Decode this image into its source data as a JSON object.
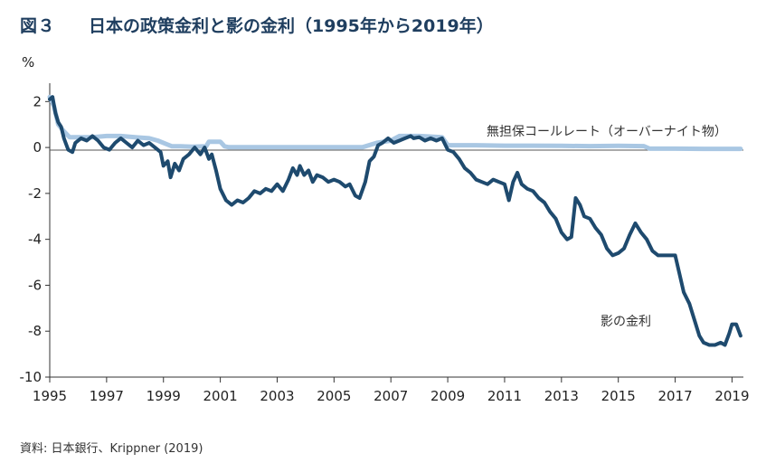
{
  "figure": {
    "label": "図３",
    "title": "日本の政策金利と影の金利（1995年から2019年）",
    "unit": "%",
    "source": "資料: 日本銀行、Krippner (2019)"
  },
  "colors": {
    "title": "#1f3e5f",
    "shadow_rate": "#1e4a6e",
    "call_rate": "#a9c7e3",
    "axis": "#333333"
  },
  "chart_data": {
    "type": "line",
    "title": "日本の政策金利と影の金利（1995年から2019年）",
    "xlabel": "",
    "ylabel": "%",
    "xlim": [
      1995,
      2019.4
    ],
    "ylim": [
      -10,
      2.8
    ],
    "grid": false,
    "y_ticks": [
      2,
      0,
      -2,
      -4,
      -6,
      -8,
      -10
    ],
    "y_tick_labels": [
      "2",
      "0",
      "-2",
      "-4",
      "-6",
      "-8",
      "-10"
    ],
    "x_ticks": [
      1995,
      1997,
      1999,
      2001,
      2003,
      2005,
      2007,
      2009,
      2011,
      2013,
      2015,
      2017,
      2019
    ],
    "x_tick_labels": [
      "1995",
      "1997",
      "1999",
      "2001",
      "2003",
      "2005",
      "2007",
      "2009",
      "2011",
      "2013",
      "2015",
      "2017",
      "2019"
    ],
    "series": [
      {
        "name": "無担保コールレート（オーバーナイト物）",
        "color": "#a9c7e3",
        "points": [
          [
            1995.0,
            2.2
          ],
          [
            1995.15,
            1.8
          ],
          [
            1995.3,
            1.0
          ],
          [
            1995.5,
            0.7
          ],
          [
            1995.7,
            0.45
          ],
          [
            1996.0,
            0.45
          ],
          [
            1996.5,
            0.45
          ],
          [
            1997.0,
            0.5
          ],
          [
            1997.5,
            0.5
          ],
          [
            1998.0,
            0.45
          ],
          [
            1998.5,
            0.4
          ],
          [
            1998.8,
            0.3
          ],
          [
            1999.1,
            0.15
          ],
          [
            1999.3,
            0.05
          ],
          [
            1999.6,
            0.05
          ],
          [
            2000.0,
            0.03
          ],
          [
            2000.5,
            0.05
          ],
          [
            2000.6,
            0.25
          ],
          [
            2001.0,
            0.25
          ],
          [
            2001.15,
            0.05
          ],
          [
            2001.3,
            0.01
          ],
          [
            2003.0,
            0.01
          ],
          [
            2005.0,
            0.01
          ],
          [
            2006.0,
            0.01
          ],
          [
            2006.5,
            0.2
          ],
          [
            2007.0,
            0.3
          ],
          [
            2007.3,
            0.5
          ],
          [
            2008.0,
            0.5
          ],
          [
            2008.8,
            0.45
          ],
          [
            2009.0,
            0.1
          ],
          [
            2010.0,
            0.1
          ],
          [
            2011.0,
            0.08
          ],
          [
            2012.0,
            0.08
          ],
          [
            2013.0,
            0.07
          ],
          [
            2014.0,
            0.06
          ],
          [
            2015.0,
            0.07
          ],
          [
            2015.9,
            0.06
          ],
          [
            2016.1,
            -0.05
          ],
          [
            2016.5,
            -0.05
          ],
          [
            2017.0,
            -0.05
          ],
          [
            2018.0,
            -0.06
          ],
          [
            2019.0,
            -0.06
          ],
          [
            2019.3,
            -0.06
          ]
        ]
      },
      {
        "name": "影の金利",
        "color": "#1e4a6e",
        "points": [
          [
            1995.0,
            2.1
          ],
          [
            1995.1,
            2.2
          ],
          [
            1995.2,
            1.5
          ],
          [
            1995.3,
            1.1
          ],
          [
            1995.4,
            0.9
          ],
          [
            1995.5,
            0.4
          ],
          [
            1995.65,
            -0.1
          ],
          [
            1995.8,
            -0.2
          ],
          [
            1995.9,
            0.2
          ],
          [
            1996.1,
            0.4
          ],
          [
            1996.3,
            0.3
          ],
          [
            1996.5,
            0.5
          ],
          [
            1996.7,
            0.3
          ],
          [
            1996.9,
            0.0
          ],
          [
            1997.1,
            -0.1
          ],
          [
            1997.3,
            0.2
          ],
          [
            1997.5,
            0.4
          ],
          [
            1997.7,
            0.2
          ],
          [
            1997.9,
            0.0
          ],
          [
            1998.1,
            0.3
          ],
          [
            1998.3,
            0.1
          ],
          [
            1998.5,
            0.2
          ],
          [
            1998.7,
            0.0
          ],
          [
            1998.9,
            -0.2
          ],
          [
            1999.0,
            -0.8
          ],
          [
            1999.15,
            -0.6
          ],
          [
            1999.25,
            -1.3
          ],
          [
            1999.4,
            -0.7
          ],
          [
            1999.55,
            -1.0
          ],
          [
            1999.7,
            -0.5
          ],
          [
            1999.9,
            -0.3
          ],
          [
            2000.1,
            0.0
          ],
          [
            2000.3,
            -0.3
          ],
          [
            2000.45,
            0.0
          ],
          [
            2000.6,
            -0.5
          ],
          [
            2000.7,
            -0.3
          ],
          [
            2000.85,
            -1.0
          ],
          [
            2001.0,
            -1.8
          ],
          [
            2001.2,
            -2.3
          ],
          [
            2001.4,
            -2.5
          ],
          [
            2001.6,
            -2.3
          ],
          [
            2001.8,
            -2.4
          ],
          [
            2002.0,
            -2.2
          ],
          [
            2002.2,
            -1.9
          ],
          [
            2002.4,
            -2.0
          ],
          [
            2002.6,
            -1.8
          ],
          [
            2002.8,
            -1.9
          ],
          [
            2003.0,
            -1.6
          ],
          [
            2003.2,
            -1.9
          ],
          [
            2003.4,
            -1.4
          ],
          [
            2003.55,
            -0.9
          ],
          [
            2003.7,
            -1.2
          ],
          [
            2003.8,
            -0.8
          ],
          [
            2003.95,
            -1.2
          ],
          [
            2004.1,
            -1.0
          ],
          [
            2004.25,
            -1.5
          ],
          [
            2004.4,
            -1.2
          ],
          [
            2004.6,
            -1.3
          ],
          [
            2004.8,
            -1.5
          ],
          [
            2005.0,
            -1.4
          ],
          [
            2005.2,
            -1.5
          ],
          [
            2005.4,
            -1.7
          ],
          [
            2005.55,
            -1.6
          ],
          [
            2005.75,
            -2.1
          ],
          [
            2005.9,
            -2.2
          ],
          [
            2006.1,
            -1.5
          ],
          [
            2006.25,
            -0.6
          ],
          [
            2006.4,
            -0.4
          ],
          [
            2006.55,
            0.1
          ],
          [
            2006.7,
            0.2
          ],
          [
            2006.9,
            0.4
          ],
          [
            2007.1,
            0.2
          ],
          [
            2007.3,
            0.3
          ],
          [
            2007.5,
            0.4
          ],
          [
            2007.7,
            0.5
          ],
          [
            2007.8,
            0.4
          ],
          [
            2008.0,
            0.45
          ],
          [
            2008.2,
            0.3
          ],
          [
            2008.4,
            0.4
          ],
          [
            2008.6,
            0.3
          ],
          [
            2008.8,
            0.4
          ],
          [
            2009.0,
            -0.1
          ],
          [
            2009.2,
            -0.2
          ],
          [
            2009.4,
            -0.5
          ],
          [
            2009.6,
            -0.9
          ],
          [
            2009.8,
            -1.1
          ],
          [
            2010.0,
            -1.4
          ],
          [
            2010.2,
            -1.5
          ],
          [
            2010.4,
            -1.6
          ],
          [
            2010.6,
            -1.4
          ],
          [
            2010.8,
            -1.5
          ],
          [
            2011.0,
            -1.6
          ],
          [
            2011.15,
            -2.3
          ],
          [
            2011.3,
            -1.5
          ],
          [
            2011.45,
            -1.1
          ],
          [
            2011.6,
            -1.6
          ],
          [
            2011.8,
            -1.8
          ],
          [
            2012.0,
            -1.9
          ],
          [
            2012.2,
            -2.2
          ],
          [
            2012.4,
            -2.4
          ],
          [
            2012.6,
            -2.8
          ],
          [
            2012.8,
            -3.1
          ],
          [
            2013.0,
            -3.7
          ],
          [
            2013.2,
            -4.0
          ],
          [
            2013.35,
            -3.9
          ],
          [
            2013.5,
            -2.2
          ],
          [
            2013.65,
            -2.5
          ],
          [
            2013.8,
            -3.0
          ],
          [
            2014.0,
            -3.1
          ],
          [
            2014.2,
            -3.5
          ],
          [
            2014.4,
            -3.8
          ],
          [
            2014.6,
            -4.4
          ],
          [
            2014.8,
            -4.7
          ],
          [
            2015.0,
            -4.6
          ],
          [
            2015.2,
            -4.4
          ],
          [
            2015.4,
            -3.8
          ],
          [
            2015.6,
            -3.3
          ],
          [
            2015.8,
            -3.7
          ],
          [
            2016.0,
            -4.0
          ],
          [
            2016.2,
            -4.5
          ],
          [
            2016.4,
            -4.7
          ],
          [
            2016.6,
            -4.7
          ],
          [
            2016.8,
            -4.7
          ],
          [
            2017.0,
            -4.7
          ],
          [
            2017.15,
            -5.5
          ],
          [
            2017.3,
            -6.3
          ],
          [
            2017.5,
            -6.8
          ],
          [
            2017.7,
            -7.6
          ],
          [
            2017.85,
            -8.2
          ],
          [
            2018.0,
            -8.5
          ],
          [
            2018.2,
            -8.6
          ],
          [
            2018.4,
            -8.6
          ],
          [
            2018.6,
            -8.5
          ],
          [
            2018.75,
            -8.6
          ],
          [
            2018.9,
            -8.1
          ],
          [
            2019.0,
            -7.7
          ],
          [
            2019.15,
            -7.7
          ],
          [
            2019.3,
            -8.2
          ]
        ]
      }
    ],
    "annotations": [
      {
        "text": "無担保コールレート（オーバーナイト物）",
        "series": 0
      },
      {
        "text": "影の金利",
        "series": 1
      }
    ]
  }
}
